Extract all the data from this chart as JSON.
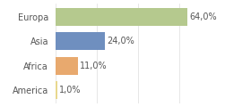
{
  "categories": [
    "Europa",
    "Asia",
    "Africa",
    "America"
  ],
  "values": [
    64.0,
    24.0,
    11.0,
    1.0
  ],
  "bar_colors": [
    "#b5c98e",
    "#6f8fbf",
    "#e8a96e",
    "#e8d88e"
  ],
  "label_texts": [
    "64,0%",
    "24,0%",
    "11,0%",
    "1,0%"
  ],
  "background_color": "#ffffff",
  "xlim": [
    0,
    80
  ],
  "bar_height": 0.72,
  "label_fontsize": 7.0,
  "tick_fontsize": 7.0,
  "grid_color": "#dddddd",
  "text_color": "#555555"
}
